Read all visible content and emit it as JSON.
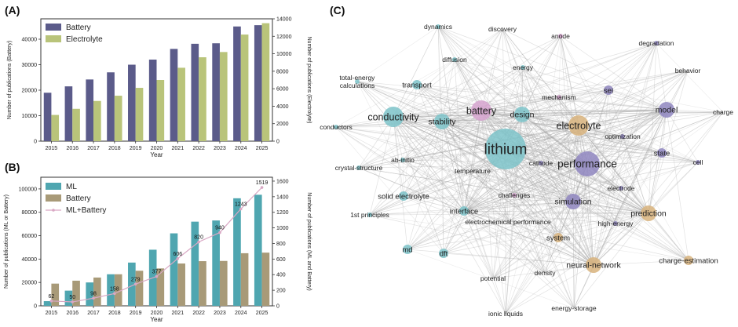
{
  "panels": {
    "a": "(A)",
    "b": "(B)",
    "c": "(C)"
  },
  "colors": {
    "battery_a": "#5b5b8a",
    "electrolyte": "#b9c47a",
    "ml": "#4fa6b0",
    "battery_b": "#a89a78",
    "ml_battery_line": "#d9a8c4"
  },
  "chart_data": [
    {
      "type": "bar",
      "categories": [
        "2015",
        "2016",
        "2017",
        "2018",
        "2019",
        "2020",
        "2021",
        "2022",
        "2023",
        "2024",
        "2025"
      ],
      "series": [
        {
          "name": "Battery",
          "axis": "left",
          "values": [
            19000,
            21500,
            24200,
            27000,
            30000,
            32000,
            36200,
            38200,
            38400,
            45000,
            45500
          ]
        },
        {
          "name": "Electrolyte",
          "axis": "right",
          "values": [
            3000,
            3700,
            4600,
            5200,
            6100,
            7000,
            8400,
            9600,
            10200,
            12200,
            13500
          ]
        }
      ],
      "xlabel": "Year",
      "ylabel": "Number of publications (Battery)",
      "y2label": "Number of publications (Electrolyte)",
      "ylim": [
        0,
        48000
      ],
      "y2lim": [
        0,
        14000
      ],
      "yticks": [
        "0",
        "10000",
        "20000",
        "30000",
        "40000"
      ],
      "y2ticks": [
        "0",
        "2000",
        "4000",
        "6000",
        "8000",
        "10000",
        "12000",
        "14000"
      ],
      "legend": "top-left"
    },
    {
      "type": "bar",
      "categories": [
        "2015",
        "2016",
        "2017",
        "2018",
        "2019",
        "2020",
        "2021",
        "2022",
        "2023",
        "2024",
        "2025"
      ],
      "series": [
        {
          "name": "ML",
          "axis": "left",
          "values": [
            4000,
            13000,
            20000,
            27000,
            37000,
            48000,
            62000,
            72000,
            73000,
            92000,
            95000
          ]
        },
        {
          "name": "Battery",
          "axis": "left",
          "values": [
            19000,
            21500,
            24200,
            27000,
            30000,
            32000,
            36200,
            38200,
            38400,
            45000,
            45500
          ]
        },
        {
          "name": "ML+Battery",
          "type": "line",
          "axis": "right",
          "values": [
            62,
            50,
            98,
            158,
            279,
            377,
            606,
            820,
            940,
            1243,
            1519
          ]
        }
      ],
      "data_labels": [
        "62",
        "50",
        "98",
        "158",
        "279",
        "377",
        "606",
        "820",
        "940",
        "1243",
        "1519"
      ],
      "xlabel": "Year",
      "ylabel": "Number of publications (ML or Battery)",
      "y2label": "Number of publications (ML and Battery)",
      "ylim": [
        0,
        110000
      ],
      "y2lim": [
        0,
        1650
      ],
      "yticks": [
        "0",
        "20000",
        "40000",
        "60000",
        "80000",
        "100000"
      ],
      "y2ticks": [
        "0",
        "200",
        "400",
        "600",
        "800",
        "1000",
        "1200",
        "1400",
        "1600"
      ],
      "legend": "top-left"
    },
    {
      "type": "network",
      "nodes": [
        {
          "label": "dynamics",
          "cluster": "teal",
          "size": 1
        },
        {
          "label": "discovery",
          "cluster": "none",
          "size": 1
        },
        {
          "label": "anode",
          "cluster": "pink",
          "size": 1
        },
        {
          "label": "degradation",
          "cluster": "purple",
          "size": 1
        },
        {
          "label": "diffusion",
          "cluster": "teal",
          "size": 1
        },
        {
          "label": "energy",
          "cluster": "teal",
          "size": 1
        },
        {
          "label": "behavior",
          "cluster": "none",
          "size": 1
        },
        {
          "label": "total-energy\ncalculations",
          "cluster": "teal",
          "size": 1
        },
        {
          "label": "transport",
          "cluster": "teal",
          "size": 2
        },
        {
          "label": "mechanism",
          "cluster": "pink",
          "size": 1
        },
        {
          "label": "sei",
          "cluster": "purple",
          "size": 2
        },
        {
          "label": "battery",
          "cluster": "pink",
          "size": 4
        },
        {
          "label": "design",
          "cluster": "teal",
          "size": 3
        },
        {
          "label": "model",
          "cluster": "purple",
          "size": 3
        },
        {
          "label": "conductivity",
          "cluster": "teal",
          "size": 4
        },
        {
          "label": "stability",
          "cluster": "teal",
          "size": 3
        },
        {
          "label": "electrolyte",
          "cluster": "orange",
          "size": 4
        },
        {
          "label": "charge",
          "cluster": "none",
          "size": 1
        },
        {
          "label": "conductors",
          "cluster": "teal",
          "size": 1
        },
        {
          "label": "optimization",
          "cluster": "purple",
          "size": 1
        },
        {
          "label": "lithium",
          "cluster": "teal",
          "size": 6
        },
        {
          "label": "state",
          "cluster": "purple",
          "size": 2
        },
        {
          "label": "ab-initio",
          "cluster": "teal",
          "size": 1
        },
        {
          "label": "cathode",
          "cluster": "purple",
          "size": 1
        },
        {
          "label": "performance",
          "cluster": "purple",
          "size": 5
        },
        {
          "label": "cell",
          "cluster": "purple",
          "size": 1
        },
        {
          "label": "crystal-structure",
          "cluster": "teal",
          "size": 1
        },
        {
          "label": "temperature",
          "cluster": "none",
          "size": 1
        },
        {
          "label": "electrode",
          "cluster": "purple",
          "size": 1
        },
        {
          "label": "solid electrolyte",
          "cluster": "teal",
          "size": 2
        },
        {
          "label": "challenges",
          "cluster": "pink",
          "size": 1
        },
        {
          "label": "simulation",
          "cluster": "purple",
          "size": 3
        },
        {
          "label": "interface",
          "cluster": "teal",
          "size": 2
        },
        {
          "label": "prediction",
          "cluster": "orange",
          "size": 3
        },
        {
          "label": "1st principles",
          "cluster": "teal",
          "size": 1
        },
        {
          "label": "high-energy",
          "cluster": "purple",
          "size": 1
        },
        {
          "label": "electrochemical performance",
          "cluster": "none",
          "size": 1
        },
        {
          "label": "system",
          "cluster": "orange",
          "size": 2
        },
        {
          "label": "md",
          "cluster": "teal",
          "size": 2
        },
        {
          "label": "dft",
          "cluster": "teal",
          "size": 2
        },
        {
          "label": "neural-network",
          "cluster": "orange",
          "size": 3
        },
        {
          "label": "charge-estimation",
          "cluster": "orange",
          "size": 2
        },
        {
          "label": "potential",
          "cluster": "none",
          "size": 1
        },
        {
          "label": "density",
          "cluster": "none",
          "size": 1
        },
        {
          "label": "ionic liquids",
          "cluster": "none",
          "size": 1
        },
        {
          "label": "energy-storage",
          "cluster": "none",
          "size": 1
        }
      ],
      "cluster_colors": {
        "teal": "#7cc3c9",
        "purple": "#8f86c0",
        "pink": "#d6a3cf",
        "orange": "#d8b37c",
        "none": "#c8c8c8"
      }
    }
  ]
}
